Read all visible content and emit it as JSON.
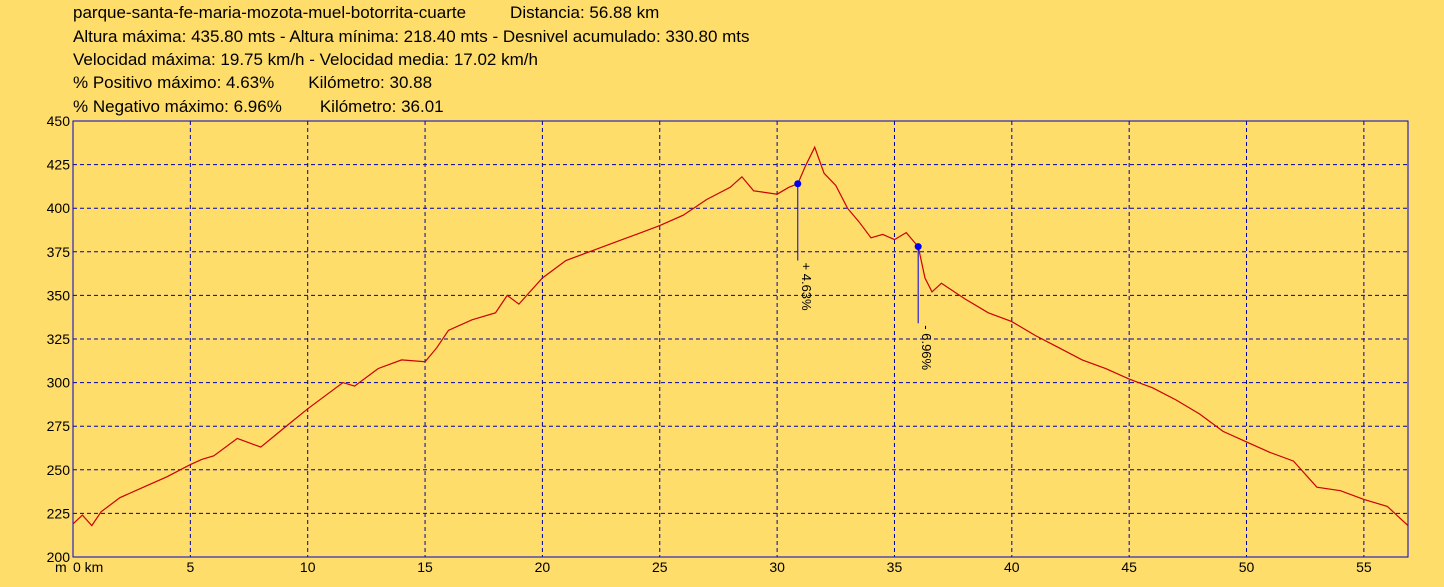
{
  "header": {
    "route_name": "parque-santa-fe-maria-mozota-muel-botorrita-cuarte",
    "distance_text": "Distancia: 56.88 km",
    "altitude_text": "Altura máxima: 435.80 mts - Altura mínima: 218.40 mts - Desnivel acumulado: 330.80 mts",
    "speed_text": "Velocidad máxima: 19.75 km/h - Velocidad media: 17.02 km/h",
    "positive_text": "% Positivo máximo: 4.63%",
    "positive_km_text": "Kilómetro: 30.88",
    "negative_text": "% Negativo máximo: 6.96%",
    "negative_km_text": "Kilómetro: 36.01"
  },
  "colors": {
    "background": "#FEDD6B",
    "profile_line": "#CC0000",
    "marker": "#0000EE",
    "frame": "#0000CC",
    "grid": "#0000AA"
  },
  "chart_data": {
    "type": "line",
    "xlabel_unit_y": "m",
    "xlabel_unit_x": "km",
    "xlim": [
      0,
      56.88
    ],
    "ylim": [
      200,
      450
    ],
    "x_ticks": [
      0,
      5,
      10,
      15,
      20,
      25,
      30,
      35,
      40,
      45,
      50,
      55
    ],
    "x_tick_labels": [
      "0 km",
      "5",
      "10",
      "15",
      "20",
      "25",
      "30",
      "35",
      "40",
      "45",
      "50",
      "55"
    ],
    "y_ticks": [
      200,
      225,
      250,
      275,
      300,
      325,
      350,
      375,
      400,
      425,
      450
    ],
    "y_tick_labels": [
      "200",
      "225",
      "250",
      "275",
      "300",
      "325",
      "350",
      "375",
      "400",
      "425",
      "450"
    ],
    "grid": true,
    "x": [
      0,
      0.4,
      0.8,
      1.2,
      2,
      3,
      4,
      5,
      5.5,
      6,
      7,
      8,
      9,
      10,
      11,
      11.5,
      12,
      13,
      14,
      15,
      15.5,
      16,
      17,
      18,
      18.5,
      19,
      20,
      21,
      22,
      23,
      24,
      25,
      26,
      27,
      28,
      28.5,
      29,
      30,
      30.5,
      30.88,
      31.2,
      31.6,
      32,
      32.5,
      33,
      33.5,
      34,
      34.5,
      35,
      35.5,
      36.01,
      36.3,
      36.6,
      37,
      38,
      39,
      40,
      41,
      42,
      43,
      44,
      45,
      46,
      47,
      48,
      49,
      50,
      51,
      52,
      53,
      54,
      55,
      56,
      56.88
    ],
    "y": [
      219,
      224,
      218,
      226,
      234,
      240,
      246,
      253,
      256,
      258,
      268,
      263,
      274,
      285,
      295,
      300,
      298,
      308,
      313,
      312,
      320,
      330,
      336,
      340,
      350,
      345,
      360,
      370,
      375,
      380,
      385,
      390,
      396,
      405,
      412,
      418,
      410,
      408,
      412,
      414,
      424,
      435,
      420,
      413,
      400,
      392,
      383,
      385,
      382,
      386,
      378,
      360,
      352,
      357,
      348,
      340,
      335,
      327,
      320,
      313,
      308,
      302,
      297,
      290,
      282,
      272,
      266,
      260,
      255,
      240,
      238,
      233,
      229,
      218
    ],
    "annotations": [
      {
        "label": "+ 4.63%",
        "x": 30.88,
        "y": 414,
        "y_end": 370
      },
      {
        "label": "- 6.96%",
        "x": 36.01,
        "y": 378,
        "y_end": 334
      }
    ]
  }
}
